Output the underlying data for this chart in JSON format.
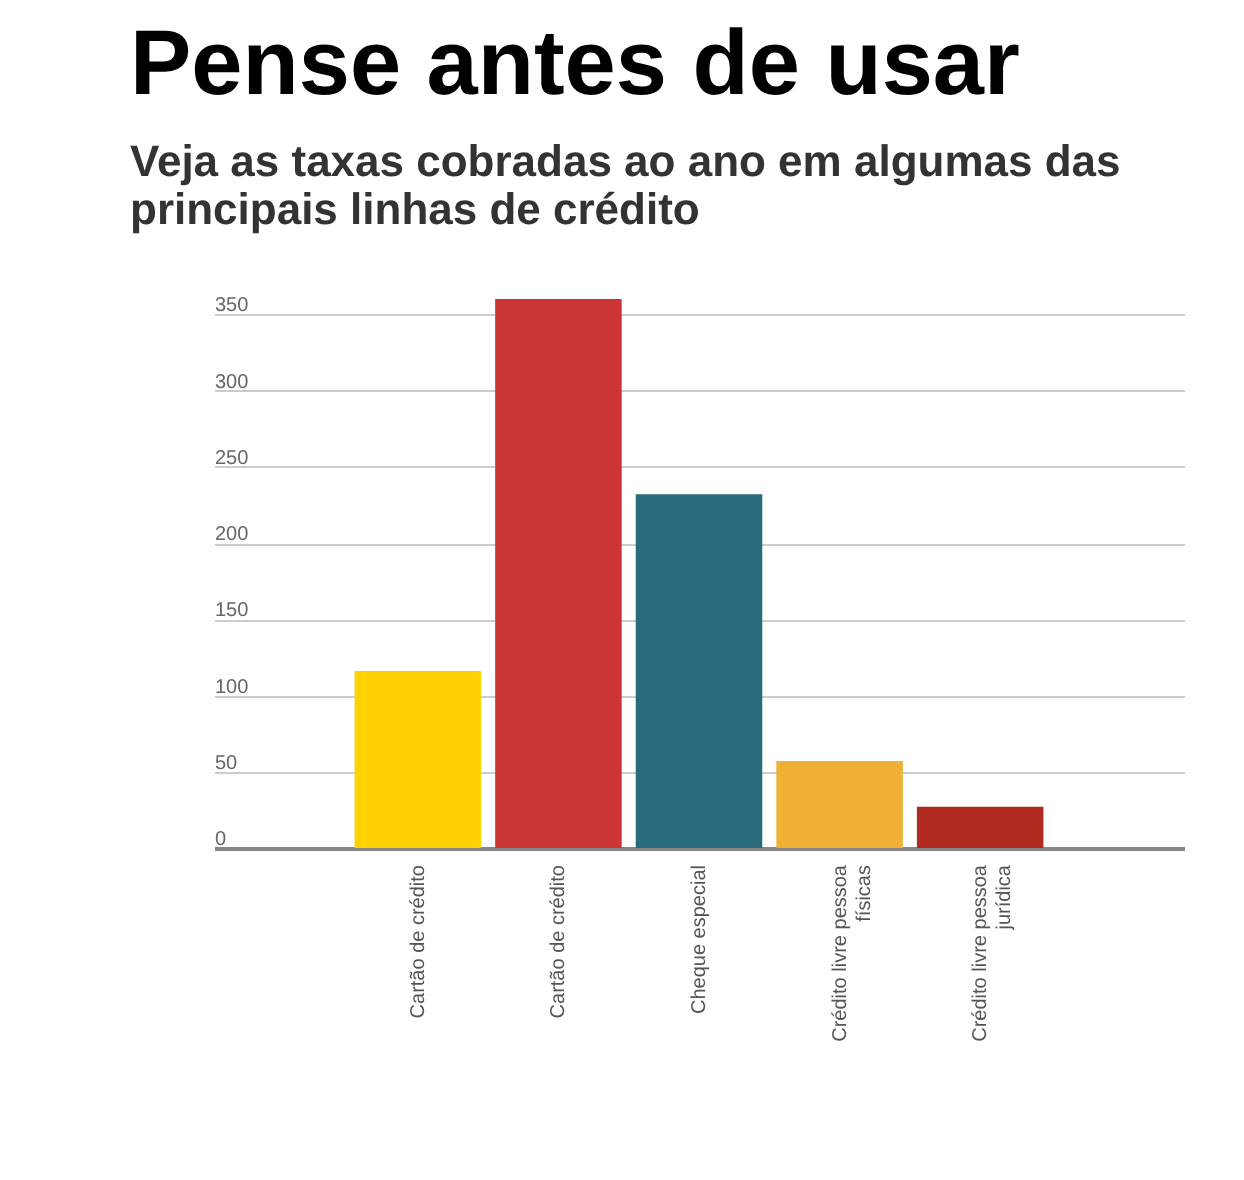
{
  "chart_data": {
    "type": "bar",
    "title": "Pense antes de usar",
    "subtitle": "Veja as taxas cobradas ao ano em algumas das principais linhas de crédito",
    "categories": [
      "Cartão de crédito",
      "Cartão de crédito",
      "Cheque especial",
      "Crédito livre pessoa físicas",
      "Crédito livre pessoa jurídica"
    ],
    "values": [
      116,
      360,
      232,
      57,
      27
    ],
    "colors": [
      "#ffd100",
      "#cc3535",
      "#286b7a",
      "#f0b035",
      "#b02a20"
    ],
    "ylim": [
      0,
      362
    ],
    "yticks": [
      0,
      50,
      100,
      150,
      200,
      250,
      300,
      350
    ],
    "grid": "y"
  }
}
